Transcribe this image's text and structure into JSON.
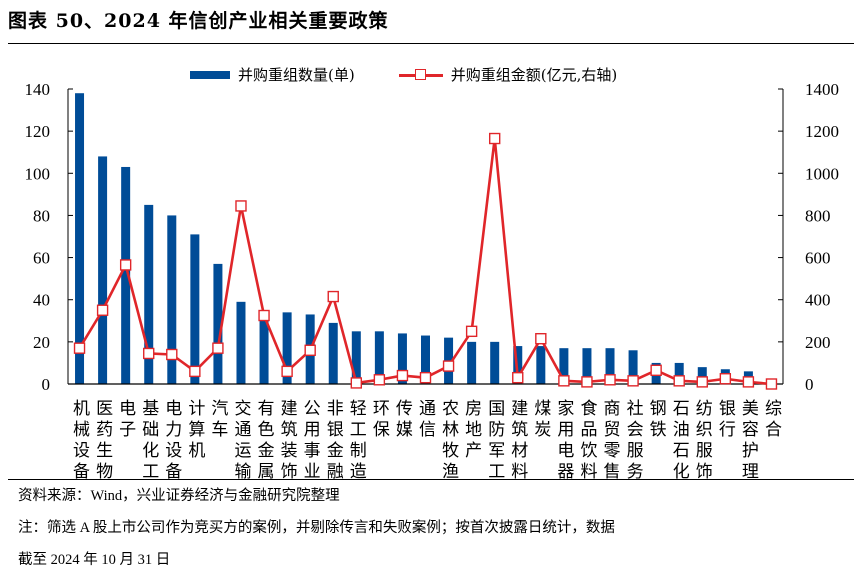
{
  "title": "图表 50、2024 年信创产业相关重要政策",
  "legend": {
    "bar_label": "并购重组数量(单)",
    "line_label": "并购重组金额(亿元,右轴)"
  },
  "colors": {
    "bar": "#004C97",
    "line": "#E0262A",
    "marker_fill": "#FFFFFF"
  },
  "footer": {
    "source": "资料来源：Wind，兴业证券经济与金融研究院整理",
    "note_line1": "注：筛选 A 股上市公司作为竞买方的案例，并剔除传言和失败案例；按首次披露日统计，数据",
    "note_line2": "截至 2024 年 10 月 31 日"
  },
  "chart_data": {
    "type": "bar+line",
    "title": "图表 50、2024 年信创产业相关重要政策",
    "categories": [
      "机械设备",
      "医药生物",
      "电子",
      "基础化工",
      "电力设备",
      "计算机",
      "汽车",
      "交通运输",
      "有色金属",
      "建筑装饰",
      "公用事业",
      "非银金融",
      "轻工制造",
      "环保",
      "传媒",
      "通信",
      "农林牧渔",
      "房地产",
      "国防军工",
      "建筑材料",
      "煤炭",
      "家用电器",
      "食品饮料",
      "商贸零售",
      "社会服务",
      "钢铁",
      "石油石化",
      "纺织服饰",
      "银行",
      "美容护理",
      "综合"
    ],
    "series": [
      {
        "name": "并购重组数量(单)",
        "type": "bar",
        "axis": "left",
        "values": [
          138,
          108,
          103,
          85,
          80,
          71,
          57,
          39,
          34,
          34,
          33,
          29,
          25,
          25,
          24,
          23,
          22,
          20,
          20,
          18,
          18,
          17,
          17,
          17,
          16,
          10,
          10,
          8,
          7,
          6,
          0
        ]
      },
      {
        "name": "并购重组金额(亿元,右轴)",
        "type": "line",
        "axis": "right",
        "values": [
          170,
          350,
          565,
          145,
          140,
          60,
          170,
          845,
          325,
          60,
          160,
          415,
          5,
          20,
          40,
          30,
          85,
          250,
          1165,
          30,
          215,
          15,
          10,
          20,
          15,
          65,
          15,
          10,
          25,
          10,
          0
        ]
      }
    ],
    "left_axis": {
      "min": 0,
      "max": 140,
      "step": 20,
      "ticks": [
        "0",
        "20",
        "40",
        "60",
        "80",
        "100",
        "120",
        "140"
      ]
    },
    "right_axis": {
      "min": 0,
      "max": 1400,
      "step": 200,
      "ticks": [
        "0",
        "200",
        "400",
        "600",
        "800",
        "1000",
        "1200",
        "1400"
      ]
    },
    "xlabel": "",
    "ylabel": "",
    "grid": false,
    "legend_position": "top"
  }
}
